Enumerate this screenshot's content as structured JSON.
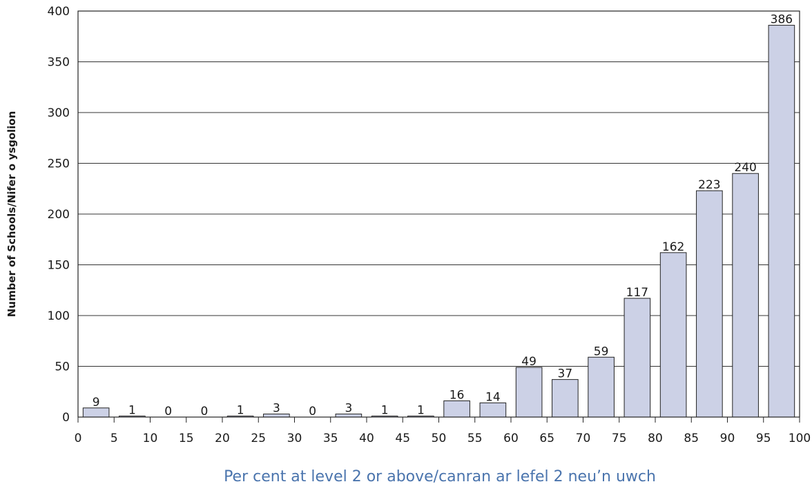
{
  "chart_data": {
    "type": "bar",
    "xlabel": "Per cent at level 2 or above/canran ar lefel 2 neu’n uwch",
    "ylabel": "Number of Schools/Nifer o ysgolion",
    "x_ticks": [
      "0",
      "5",
      "10",
      "15",
      "20",
      "25",
      "30",
      "35",
      "40",
      "45",
      "50",
      "55",
      "60",
      "65",
      "70",
      "75",
      "80",
      "85",
      "90",
      "95",
      "100"
    ],
    "y_ticks": [
      "0",
      "50",
      "100",
      "150",
      "200",
      "250",
      "300",
      "350",
      "400"
    ],
    "xlim": [
      0,
      100
    ],
    "ylim": [
      0,
      400
    ],
    "bin_width": 5,
    "bins": [
      {
        "start": 0,
        "value": 9,
        "label": "9"
      },
      {
        "start": 5,
        "value": 1,
        "label": "1"
      },
      {
        "start": 10,
        "value": 0,
        "label": "0"
      },
      {
        "start": 15,
        "value": 0,
        "label": "0"
      },
      {
        "start": 20,
        "value": 1,
        "label": "1"
      },
      {
        "start": 25,
        "value": 3,
        "label": "3"
      },
      {
        "start": 30,
        "value": 0,
        "label": "0"
      },
      {
        "start": 35,
        "value": 3,
        "label": "3"
      },
      {
        "start": 40,
        "value": 1,
        "label": "1"
      },
      {
        "start": 45,
        "value": 1,
        "label": "1"
      },
      {
        "start": 50,
        "value": 16,
        "label": "16"
      },
      {
        "start": 55,
        "value": 14,
        "label": "14"
      },
      {
        "start": 60,
        "value": 49,
        "label": "49"
      },
      {
        "start": 65,
        "value": 37,
        "label": "37"
      },
      {
        "start": 70,
        "value": 59,
        "label": "59"
      },
      {
        "start": 75,
        "value": 117,
        "label": "117"
      },
      {
        "start": 80,
        "value": 162,
        "label": "162"
      },
      {
        "start": 85,
        "value": 223,
        "label": "223"
      },
      {
        "start": 90,
        "value": 240,
        "label": "240"
      },
      {
        "start": 95,
        "value": 386,
        "label": "386"
      }
    ],
    "grid": "horizontal",
    "legend": "none",
    "colors": {
      "bar_fill": "#ccd1e6",
      "bar_stroke": "#222222",
      "grid": "#333333",
      "xlabel": "#4a74ad"
    }
  }
}
